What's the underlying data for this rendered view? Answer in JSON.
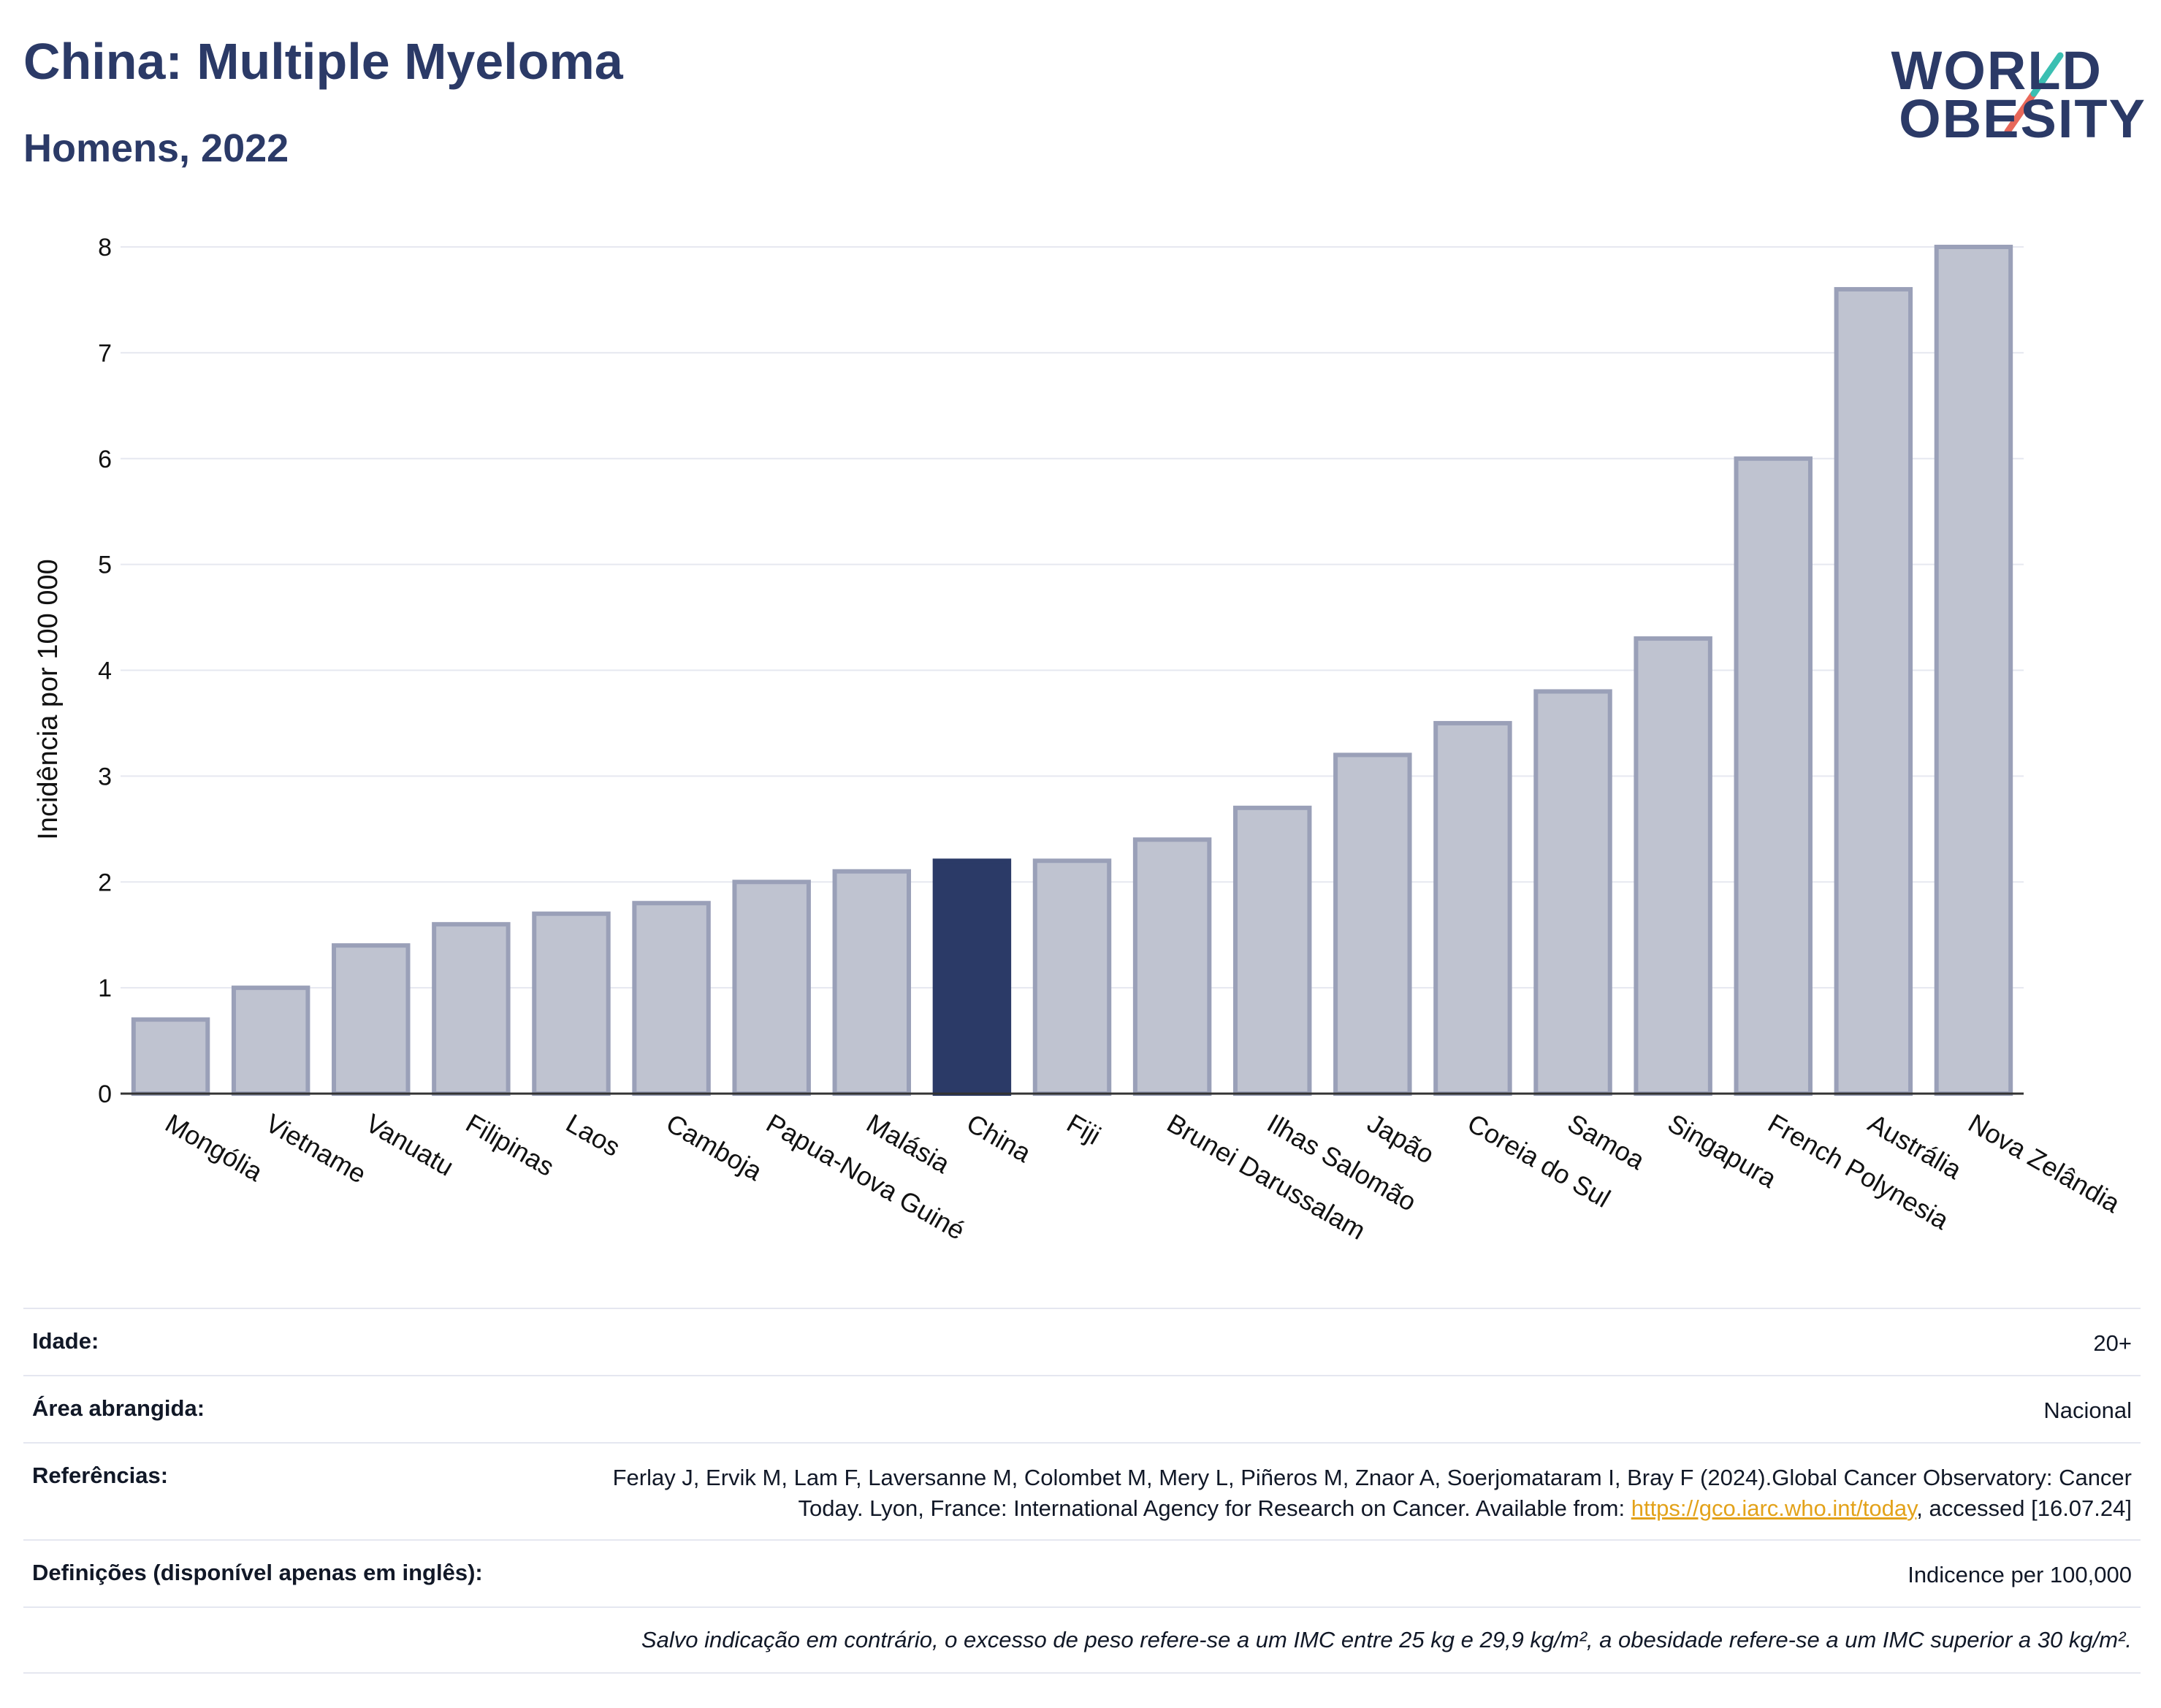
{
  "header": {
    "title": "China: Multiple Myeloma",
    "subtitle": "Homens, 2022",
    "logo_line1": "WORLD",
    "logo_line2": "OBESITY"
  },
  "colors": {
    "highlight": "#2b3a67",
    "bar_fill": "#bfc3d0",
    "bar_stroke": "#9aa0b8",
    "title": "#2b3a67",
    "link": "#e3a21a",
    "logo_slash_top": "#3bbfb2",
    "logo_slash_bottom": "#e8685a"
  },
  "chart_data": {
    "type": "bar",
    "title": "China: Multiple Myeloma",
    "subtitle": "Homens, 2022",
    "ylabel": "Incidência por 100 000",
    "xlabel": "",
    "ylim": [
      0,
      8
    ],
    "yticks": [
      0,
      1,
      2,
      3,
      4,
      5,
      6,
      7,
      8
    ],
    "grid": true,
    "highlight": "China",
    "categories": [
      "Mongólia",
      "Vietname",
      "Vanuatu",
      "Filipinas",
      "Laos",
      "Camboja",
      "Papua-Nova Guiné",
      "Malásia",
      "China",
      "Fiji",
      "Brunei Darussalam",
      "Ilhas Salomão",
      "Japão",
      "Coreia do Sul",
      "Samoa",
      "Singapura",
      "French Polynesia",
      "Austrália",
      "Nova Zelândia"
    ],
    "values": [
      0.7,
      1.0,
      1.4,
      1.6,
      1.7,
      1.8,
      2.0,
      2.1,
      2.2,
      2.2,
      2.4,
      2.7,
      3.2,
      3.5,
      3.8,
      4.3,
      6.0,
      7.6,
      8.0
    ]
  },
  "info": {
    "rows": [
      {
        "label": "Idade:",
        "value": "20+"
      },
      {
        "label": "Área abrangida:",
        "value": "Nacional"
      },
      {
        "label": "Referências:",
        "value_before": "Ferlay J, Ervik M, Lam F, Laversanne M, Colombet M, Mery L, Piñeros M, Znaor A, Soerjomataram I, Bray F (2024).Global Cancer Observatory: Cancer Today. Lyon, France: International Agency for Research on Cancer. Available from: ",
        "link": "https://gco.iarc.who.int/today",
        "value_after": ", accessed [16.07.24]"
      },
      {
        "label": "Definições (disponível apenas em inglês):",
        "value": "Indicence per 100,000"
      }
    ],
    "note": "Salvo indicação em contrário, o excesso de peso refere-se a um IMC entre 25 kg e 29,9 kg/m², a obesidade refere-se a um IMC superior a 30 kg/m²."
  }
}
